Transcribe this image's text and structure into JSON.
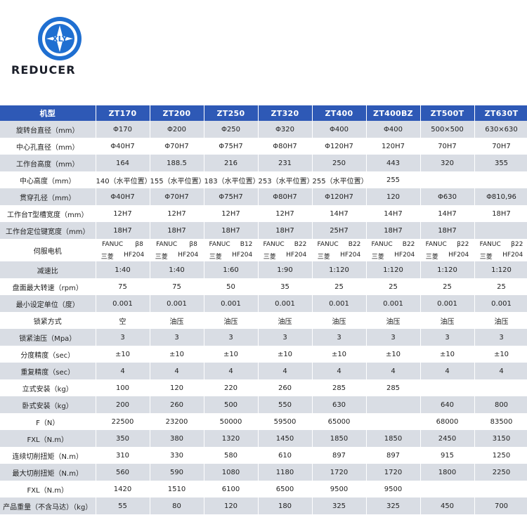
{
  "brand": {
    "logo_text": "XLY",
    "wordmark": "REDUCER"
  },
  "table": {
    "header": [
      "机型",
      "ZT170",
      "ZT200",
      "ZT250",
      "ZT320",
      "ZT400",
      "ZT400BZ",
      "ZT500T",
      "ZT630T"
    ],
    "rows_top": [
      {
        "label": "旋转台直径（mm）",
        "cells": [
          "Φ170",
          "Φ200",
          "Φ250",
          "Φ320",
          "Φ400",
          "Φ400",
          "500×500",
          "630×630"
        ]
      },
      {
        "label": "中心孔直径（mm）",
        "cells": [
          "Φ40H7",
          "Φ70H7",
          "Φ75H7",
          "Φ80H7",
          "Φ120H7",
          "120H7",
          "70H7",
          "70H7"
        ]
      },
      {
        "label": "工作台高度（mm）",
        "cells": [
          "164",
          "188.5",
          "216",
          "231",
          "250",
          "443",
          "320",
          "355"
        ]
      },
      {
        "label": "中心高度（mm）",
        "cells": [
          "140（水平位置）",
          "155（水平位置）",
          "183（水平位置）",
          "253（水平位置）",
          "255（水平位置）",
          "255",
          "",
          ""
        ]
      },
      {
        "label": "贯穿孔径（mm）",
        "cells": [
          "Φ40H7",
          "Φ70H7",
          "Φ75H7",
          "Φ80H7",
          "Φ120H7",
          "120",
          "Φ630",
          "Φ810,96"
        ]
      },
      {
        "label": "工作台T型槽宽度（mm）",
        "cells": [
          "12H7",
          "12H7",
          "12H7",
          "12H7",
          "14H7",
          "14H7",
          "14H7",
          "18H7"
        ]
      },
      {
        "label": "工作台定位键宽度（mm）",
        "cells": [
          "18H7",
          "18H7",
          "18H7",
          "18H7",
          "25H7",
          "18H7",
          "18H7",
          ""
        ]
      }
    ],
    "servo": {
      "label": "伺服电机",
      "fanuc": [
        [
          "FANUC",
          "β8"
        ],
        [
          "FANUC",
          "β8"
        ],
        [
          "FANUC",
          "B12"
        ],
        [
          "FANUC",
          "B22"
        ],
        [
          "FANUC",
          "B22"
        ],
        [
          "FANUC",
          "B22"
        ],
        [
          "FANUC",
          "β22"
        ],
        [
          "FANUC",
          "β22"
        ]
      ],
      "mitsubishi": [
        [
          "三菱",
          "HF204"
        ],
        [
          "三菱",
          "HF204"
        ],
        [
          "三菱",
          "HF204"
        ],
        [
          "三菱",
          "HF204"
        ],
        [
          "三菱",
          "HF204"
        ],
        [
          "三菱",
          "HF204"
        ],
        [
          "三菱",
          "HF204"
        ],
        [
          "三菱",
          "HF204"
        ]
      ]
    },
    "rows_bottom": [
      {
        "label": "减速比",
        "cells": [
          "1:40",
          "1:40",
          "1:60",
          "1:90",
          "1:120",
          "1:120",
          "1:120",
          "1:120"
        ]
      },
      {
        "label": "盘面最大转速（rpm）",
        "cells": [
          "75",
          "75",
          "50",
          "35",
          "25",
          "25",
          "25",
          "25"
        ]
      },
      {
        "label": "最小设定单位（度）",
        "cells": [
          "0.001",
          "0.001",
          "0.001",
          "0.001",
          "0.001",
          "0.001",
          "0.001",
          "0.001"
        ]
      },
      {
        "label": "锁紧方式",
        "cells": [
          "空",
          "油压",
          "油压",
          "油压",
          "油压",
          "油压",
          "油压",
          "油压"
        ]
      },
      {
        "label": "锁紧油压（Mpa）",
        "cells": [
          "3",
          "3",
          "3",
          "3",
          "3",
          "3",
          "3",
          "3"
        ]
      },
      {
        "label": "分度精度（sec）",
        "cells": [
          "±10",
          "±10",
          "±10",
          "±10",
          "±10",
          "±10",
          "±10",
          "±10"
        ]
      },
      {
        "label": "重复精度（sec）",
        "cells": [
          "4",
          "4",
          "4",
          "4",
          "4",
          "4",
          "4",
          "4"
        ]
      },
      {
        "label": "立式安装（kg）",
        "cells": [
          "100",
          "120",
          "220",
          "260",
          "285",
          "285",
          "",
          ""
        ]
      },
      {
        "label": "卧式安装（kg）",
        "cells": [
          "200",
          "260",
          "500",
          "550",
          "630",
          "",
          "640",
          "800"
        ]
      },
      {
        "label": "F（N）",
        "cells": [
          "22500",
          "23200",
          "50000",
          "59500",
          "65000",
          "",
          "68000",
          "83500"
        ]
      },
      {
        "label": "FXL（N.m）",
        "cells": [
          "350",
          "380",
          "1320",
          "1450",
          "1850",
          "1850",
          "2450",
          "3150"
        ]
      },
      {
        "label": "连续切削扭矩（N.m）",
        "cells": [
          "310",
          "330",
          "580",
          "610",
          "897",
          "897",
          "915",
          "1250"
        ]
      },
      {
        "label": "最大切削扭矩（N.m）",
        "cells": [
          "560",
          "590",
          "1080",
          "1180",
          "1720",
          "1720",
          "1800",
          "2250"
        ]
      },
      {
        "label": "FXL（N.m）",
        "cells": [
          "1420",
          "1510",
          "6100",
          "6500",
          "9500",
          "9500",
          "",
          ""
        ]
      },
      {
        "label": "产品重量（不含马达）（kg）",
        "cells": [
          "55",
          "80",
          "120",
          "180",
          "325",
          "325",
          "450",
          "700"
        ]
      }
    ]
  },
  "colors": {
    "header": "#2e59b6",
    "shade": "#d9dde4",
    "logo_blue": "#1f6fd1"
  }
}
